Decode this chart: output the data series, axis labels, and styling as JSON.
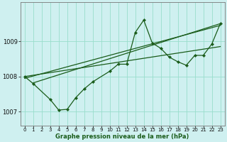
{
  "title": "Graphe pression niveau de la mer (hPa)",
  "background_color": "#cff0f0",
  "grid_color": "#99ddcc",
  "line_color": "#1a5c1a",
  "xlim": [
    -0.5,
    23.5
  ],
  "ylim": [
    1006.6,
    1010.1
  ],
  "yticks": [
    1007,
    1008,
    1009
  ],
  "xticks": [
    0,
    1,
    2,
    3,
    4,
    5,
    6,
    7,
    8,
    9,
    10,
    11,
    12,
    13,
    14,
    15,
    16,
    17,
    18,
    19,
    20,
    21,
    22,
    23
  ],
  "main_series": {
    "x": [
      0,
      1,
      3,
      4,
      5,
      6,
      7,
      8,
      10,
      11,
      12,
      13,
      14,
      15,
      16,
      17,
      18,
      19,
      20,
      21,
      22,
      23
    ],
    "y": [
      1008.0,
      1007.8,
      1007.35,
      1007.05,
      1007.07,
      1007.4,
      1007.65,
      1007.85,
      1008.15,
      1008.35,
      1008.35,
      1009.25,
      1009.6,
      1008.95,
      1008.8,
      1008.55,
      1008.42,
      1008.32,
      1008.6,
      1008.6,
      1008.92,
      1009.5
    ]
  },
  "trend1": {
    "x": [
      0,
      23
    ],
    "y": [
      1007.95,
      1009.45
    ]
  },
  "trend2": {
    "x": [
      1,
      23
    ],
    "y": [
      1007.82,
      1009.5
    ]
  },
  "trend3": {
    "x": [
      0,
      23
    ],
    "y": [
      1008.0,
      1008.85
    ]
  }
}
